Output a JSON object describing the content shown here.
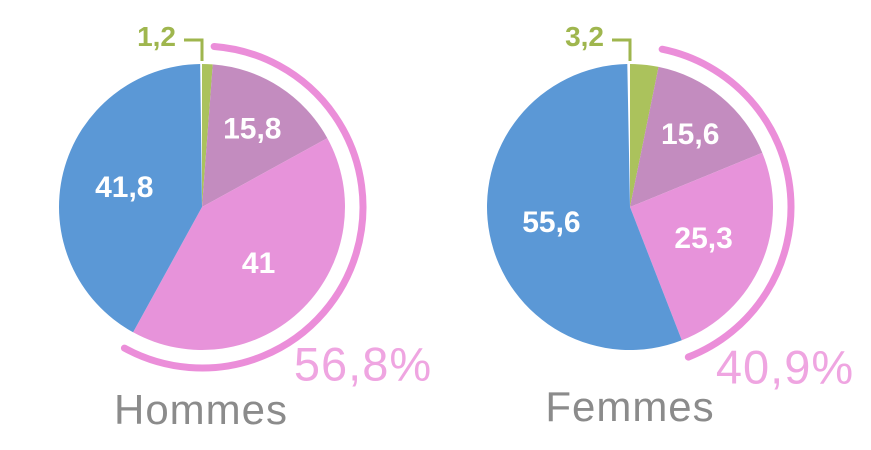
{
  "colors": {
    "blue": "#5b98d6",
    "green": "#abc25c",
    "mauve": "#c38cbf",
    "pink": "#e793da",
    "arc": "#eb8ed9",
    "arc_label": "#efa5e1",
    "callout": "#9fb64e",
    "slice_label": "#ffffff",
    "title": "#8b8b8b"
  },
  "chart_data": [
    {
      "type": "pie",
      "title": "Hommes",
      "start_angle_deg": 0,
      "direction": "clockwise",
      "slices": [
        {
          "label": "1,2",
          "value": 1.2,
          "color_key": "green",
          "callout": true
        },
        {
          "label": "15,8",
          "value": 15.8,
          "color_key": "mauve",
          "label_r": 0.65
        },
        {
          "label": "41",
          "value": 41,
          "color_key": "pink",
          "label_r": 0.56
        },
        {
          "label": "41,8",
          "value": 41.8,
          "color_key": "blue",
          "label_r": 0.56
        }
      ],
      "arc": {
        "label": "56,8%",
        "value": 56.8,
        "covers": [
          "mauve",
          "pink"
        ]
      }
    },
    {
      "type": "pie",
      "title": "Femmes",
      "start_angle_deg": 0,
      "direction": "clockwise",
      "slices": [
        {
          "label": "3,2",
          "value": 3.2,
          "color_key": "green",
          "callout": true
        },
        {
          "label": "15,6",
          "value": 15.6,
          "color_key": "mauve",
          "label_r": 0.66
        },
        {
          "label": "25,3",
          "value": 25.3,
          "color_key": "pink",
          "label_r": 0.56
        },
        {
          "label": "55,6",
          "value": 55.6,
          "color_key": "blue",
          "label_r": 0.56
        }
      ],
      "arc": {
        "label": "40,9%",
        "value": 40.9,
        "covers": [
          "mauve",
          "pink"
        ]
      }
    }
  ]
}
